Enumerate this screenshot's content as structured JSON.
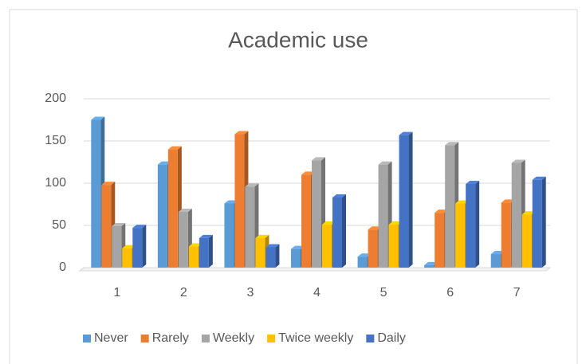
{
  "chart_data": {
    "type": "bar3d",
    "title": "Academic use",
    "categories": [
      "1",
      "2",
      "3",
      "4",
      "5",
      "6",
      "7"
    ],
    "series": [
      {
        "name": "Never",
        "color": "#5b9bd5",
        "values": [
          175,
          122,
          76,
          22,
          13,
          3,
          16
        ]
      },
      {
        "name": "Rarely",
        "color": "#ed7d31",
        "values": [
          98,
          140,
          158,
          110,
          45,
          65,
          77
        ]
      },
      {
        "name": "Weekly",
        "color": "#a5a5a5",
        "values": [
          49,
          66,
          96,
          127,
          122,
          145,
          124
        ]
      },
      {
        "name": "Twice weekly",
        "color": "#ffc000",
        "values": [
          23,
          25,
          35,
          51,
          51,
          76,
          63
        ]
      },
      {
        "name": "Daily",
        "color": "#4472c4",
        "values": [
          47,
          35,
          24,
          83,
          157,
          99,
          104
        ]
      }
    ],
    "ylim": [
      0,
      200
    ],
    "yticks": [
      0,
      50,
      100,
      150,
      200
    ],
    "grid": true,
    "legend": "bottom"
  }
}
